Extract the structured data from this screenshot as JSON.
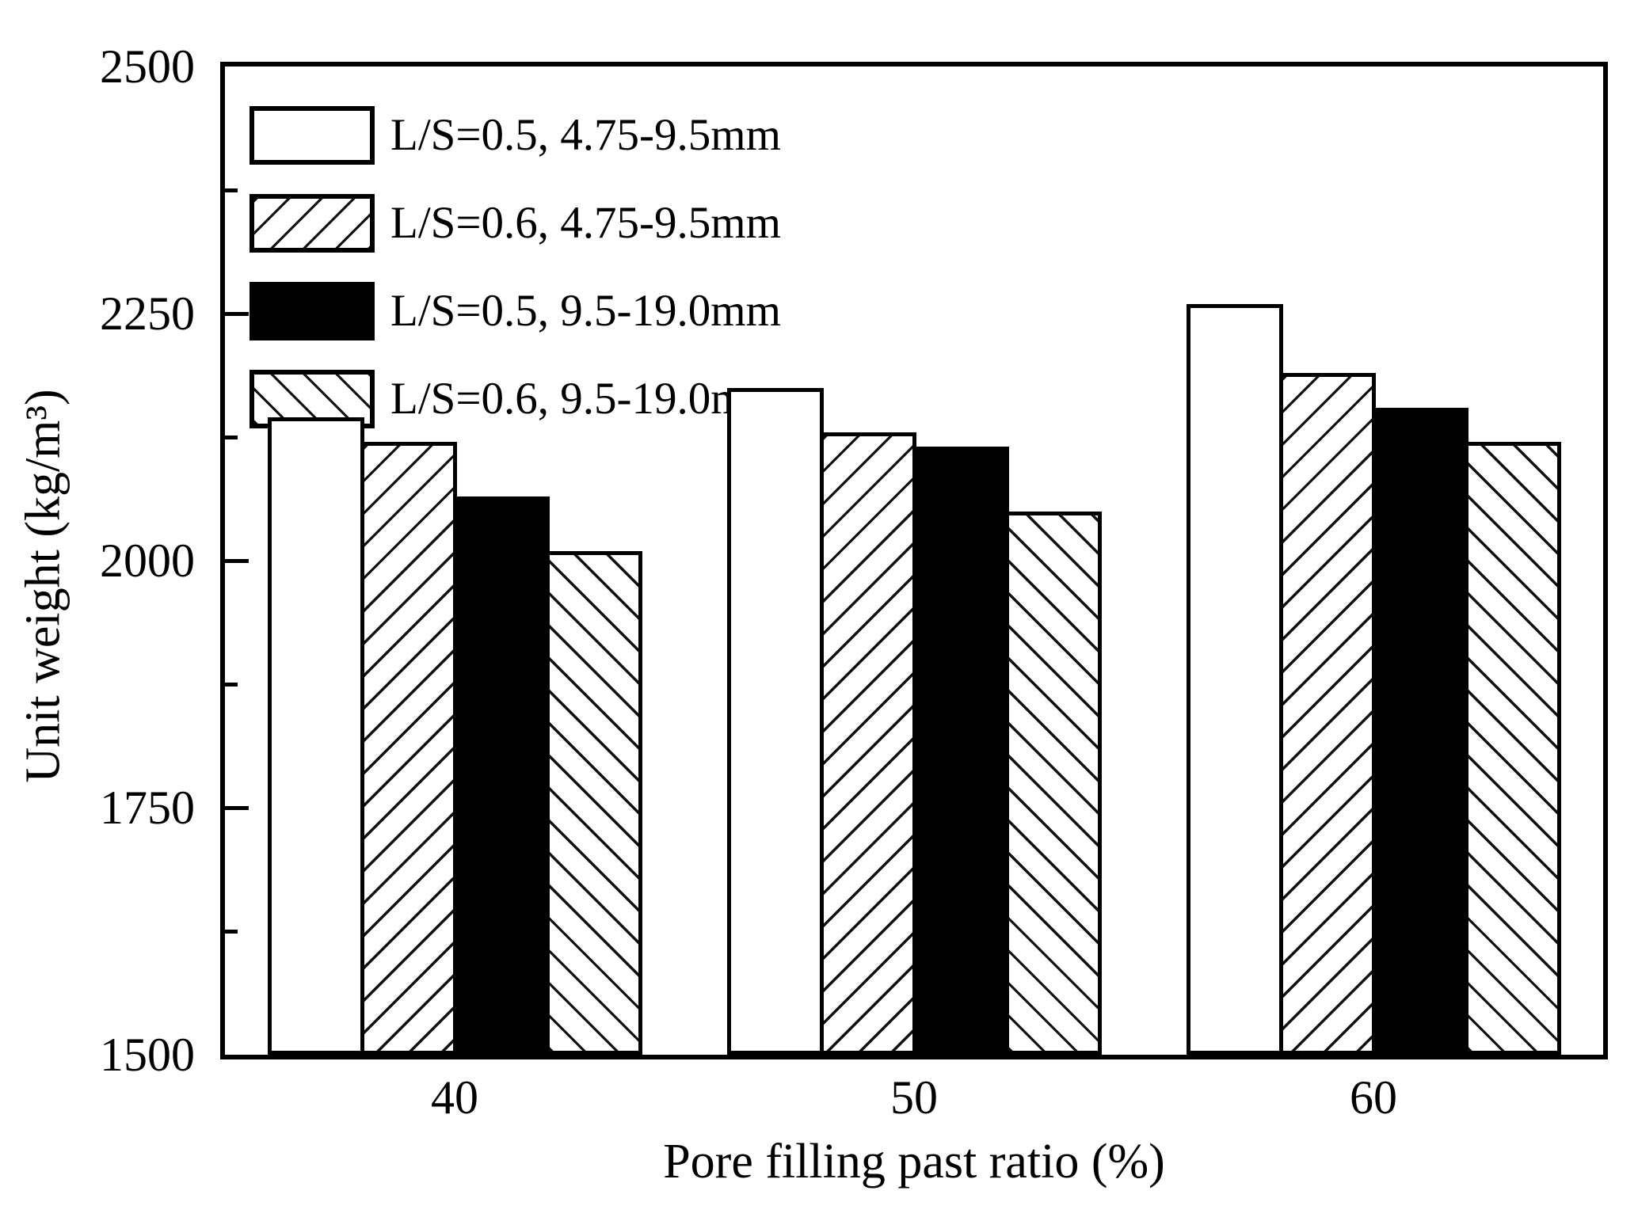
{
  "chart_data": {
    "type": "bar",
    "title": "",
    "categories": [
      "40",
      "50",
      "60"
    ],
    "series": [
      {
        "name": "L/S=0.5, 4.75-9.5mm",
        "pattern": "solid-white",
        "values": [
          2145,
          2175,
          2260
        ]
      },
      {
        "name": "L/S=0.6, 4.75-9.5mm",
        "pattern": "hatch-forward",
        "values": [
          2120,
          2130,
          2190
        ]
      },
      {
        "name": "L/S=0.5, 9.5-19.0mm",
        "pattern": "solid-black",
        "values": [
          2065,
          2115,
          2155
        ]
      },
      {
        "name": "L/S=0.6, 9.5-19.0mm",
        "pattern": "hatch-backward",
        "values": [
          2010,
          2050,
          2120
        ]
      }
    ],
    "xlabel": "Pore filling past ratio (%)",
    "ylabel": "Unit weight (kg/m³)",
    "ylim": [
      1500,
      2500
    ],
    "y_major_ticks": [
      2500,
      2250,
      2000,
      1750,
      1500
    ],
    "y_minor_ticks": [
      2375,
      2125,
      1875,
      1625
    ],
    "grid": false,
    "legend_position": "top-left-inside",
    "colors": {
      "foreground": "#000000",
      "background": "#ffffff"
    }
  }
}
